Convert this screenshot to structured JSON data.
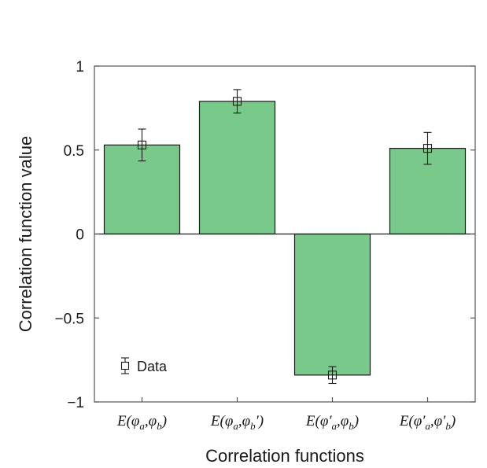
{
  "chart_data": {
    "type": "bar",
    "categories": [
      "E(φa,φb)",
      "E(φa,φb′)",
      "E(φ′a,φb)",
      "E(φ′a,φ′b)"
    ],
    "category_labels": [
      [
        {
          "t": "E(",
          "s": 0
        },
        {
          "t": "φ",
          "s": 0
        },
        {
          "t": "a",
          "s": 1
        },
        {
          "t": ",",
          "s": 0
        },
        {
          "t": "φ",
          "s": 0
        },
        {
          "t": "b",
          "s": 1
        },
        {
          "t": ")",
          "s": 0
        }
      ],
      [
        {
          "t": "E(",
          "s": 0
        },
        {
          "t": "φ",
          "s": 0
        },
        {
          "t": "a",
          "s": 1
        },
        {
          "t": ",",
          "s": 0
        },
        {
          "t": "φ",
          "s": 0
        },
        {
          "t": "b",
          "s": 1
        },
        {
          "t": "′)",
          "s": 0
        }
      ],
      [
        {
          "t": "E(",
          "s": 0
        },
        {
          "t": "φ′",
          "s": 0
        },
        {
          "t": "a",
          "s": 1
        },
        {
          "t": ",",
          "s": 0
        },
        {
          "t": "φ",
          "s": 0
        },
        {
          "t": "b",
          "s": 1
        },
        {
          "t": ")",
          "s": 0
        }
      ],
      [
        {
          "t": "E(",
          "s": 0
        },
        {
          "t": "φ′",
          "s": 0
        },
        {
          "t": "a",
          "s": 1
        },
        {
          "t": ",",
          "s": 0
        },
        {
          "t": "φ′",
          "s": 0
        },
        {
          "t": "b",
          "s": 1
        },
        {
          "t": ")",
          "s": 0
        }
      ]
    ],
    "bar_values": [
      0.53,
      0.79,
      -0.84,
      0.51
    ],
    "series": [
      {
        "name": "Data",
        "values": [
          0.53,
          0.79,
          -0.84,
          0.51
        ],
        "errors": [
          0.095,
          0.07,
          0.05,
          0.095
        ]
      }
    ],
    "title": "",
    "xlabel": "Correlation functions",
    "ylabel": "Correlation function value",
    "ylim": [
      -1,
      1
    ],
    "yticks": [
      1,
      0.5,
      0,
      -0.5,
      -1
    ],
    "ytick_labels": [
      "1",
      "0.5",
      "0",
      "−0.5",
      "−1"
    ],
    "legend": {
      "label": "Data",
      "position": "bottom-left"
    },
    "grid": false,
    "colors": {
      "bar_fill": "#78c98a",
      "bar_stroke": "#1a1a1a",
      "axis": "#555555",
      "text": "#1a1a1a"
    }
  }
}
